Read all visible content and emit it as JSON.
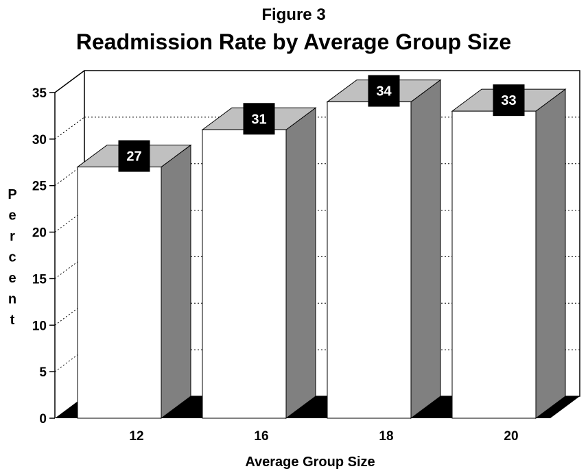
{
  "chart_data": {
    "type": "bar",
    "figure_label": "Figure 3",
    "title": "Readmission Rate by Average Group Size",
    "xlabel": "Average Group Size",
    "ylabel": "Percent",
    "categories": [
      "12",
      "16",
      "18",
      "20"
    ],
    "values": [
      27,
      31,
      34,
      33
    ],
    "data_labels": [
      "27",
      "31",
      "34",
      "33"
    ],
    "ylim": [
      0,
      35
    ],
    "yticks": [
      0,
      5,
      10,
      15,
      20,
      25,
      30,
      35
    ],
    "ytick_labels": [
      "0",
      "5",
      "10",
      "15",
      "20",
      "25",
      "30",
      "35"
    ],
    "grid": true,
    "legend": "none",
    "bar_style": "3d",
    "colors": {
      "bar_front": "#ffffff",
      "bar_side": "#808080",
      "bar_top": "#c0c0c0",
      "floor": "#000000",
      "label_box": "#000000",
      "label_text": "#ffffff",
      "text": "#000000"
    }
  }
}
